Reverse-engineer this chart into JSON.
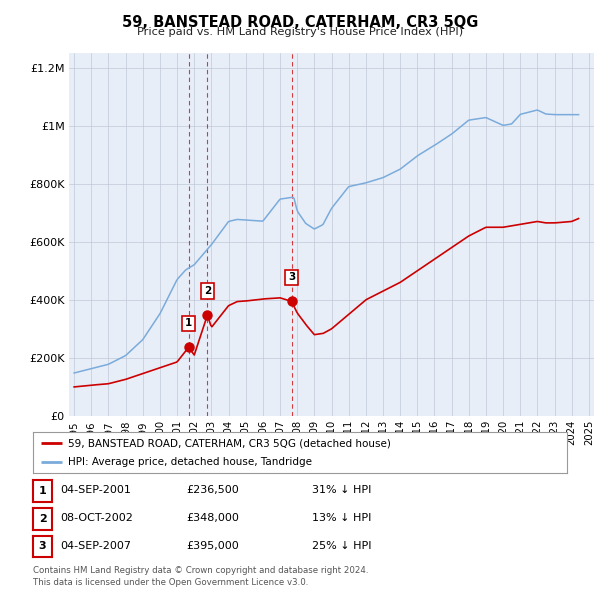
{
  "title": "59, BANSTEAD ROAD, CATERHAM, CR3 5QG",
  "subtitle": "Price paid vs. HM Land Registry's House Price Index (HPI)",
  "background_color": "#ffffff",
  "plot_bg_color": "#e8eef8",
  "legend_label_red": "59, BANSTEAD ROAD, CATERHAM, CR3 5QG (detached house)",
  "legend_label_blue": "HPI: Average price, detached house, Tandridge",
  "transactions": [
    {
      "num": "1",
      "date": "04-SEP-2001",
      "price": "£236,500",
      "hpi": "31% ↓ HPI",
      "year": 2001.67,
      "price_val": 236500
    },
    {
      "num": "2",
      "date": "08-OCT-2002",
      "price": "£348,000",
      "hpi": "13% ↓ HPI",
      "year": 2002.77,
      "price_val": 348000
    },
    {
      "num": "3",
      "date": "04-SEP-2007",
      "price": "£395,000",
      "hpi": "25% ↓ HPI",
      "year": 2007.67,
      "price_val": 395000
    }
  ],
  "footer": "Contains HM Land Registry data © Crown copyright and database right 2024.\nThis data is licensed under the Open Government Licence v3.0.",
  "ylim": [
    0,
    1250000
  ],
  "xlim": [
    1994.7,
    2025.3
  ],
  "yticks": [
    0,
    200000,
    400000,
    600000,
    800000,
    1000000,
    1200000
  ],
  "ytick_labels": [
    "£0",
    "£200K",
    "£400K",
    "£600K",
    "£800K",
    "£1M",
    "£1.2M"
  ],
  "xticks": [
    1995,
    1996,
    1997,
    1998,
    1999,
    2000,
    2001,
    2002,
    2003,
    2004,
    2005,
    2006,
    2007,
    2008,
    2009,
    2010,
    2011,
    2012,
    2013,
    2014,
    2015,
    2016,
    2017,
    2018,
    2019,
    2020,
    2021,
    2022,
    2023,
    2024,
    2025
  ],
  "red_color": "#cc0000",
  "blue_color": "#7aabdb",
  "point_color": "#cc0000",
  "vline_color": "#cc0000"
}
